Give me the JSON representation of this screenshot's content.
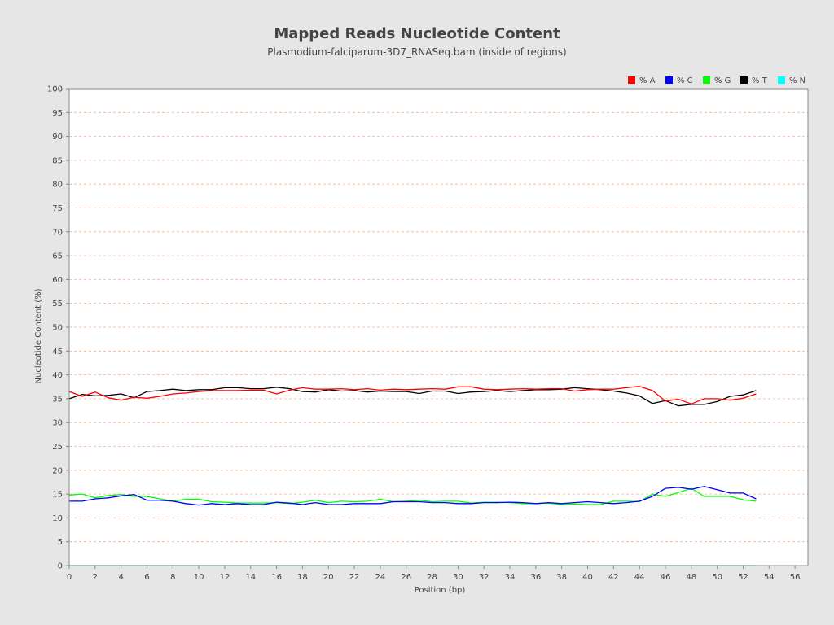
{
  "chart_data": {
    "type": "line",
    "title": "Mapped Reads Nucleotide Content",
    "subtitle": "Plasmodium-falciparum-3D7_RNASeq.bam (inside of regions)",
    "xlabel": "Position (bp)",
    "ylabel": "Nucleotide Content (%)",
    "xlim": [
      0,
      57
    ],
    "ylim": [
      0,
      100
    ],
    "xticks": [
      0,
      2,
      4,
      6,
      8,
      10,
      12,
      14,
      16,
      18,
      20,
      22,
      24,
      26,
      28,
      30,
      32,
      34,
      36,
      38,
      40,
      42,
      44,
      46,
      48,
      50,
      52,
      54,
      56
    ],
    "yticks": [
      0,
      5,
      10,
      15,
      20,
      25,
      30,
      35,
      40,
      45,
      50,
      55,
      60,
      65,
      70,
      75,
      80,
      85,
      90,
      95,
      100
    ],
    "grid": true,
    "legend_position": "top-right",
    "x": [
      0,
      1,
      2,
      3,
      4,
      5,
      6,
      7,
      8,
      9,
      10,
      11,
      12,
      13,
      14,
      15,
      16,
      17,
      18,
      19,
      20,
      21,
      22,
      23,
      24,
      25,
      26,
      27,
      28,
      29,
      30,
      31,
      32,
      33,
      34,
      35,
      36,
      37,
      38,
      39,
      40,
      41,
      42,
      43,
      44,
      45,
      46,
      47,
      48,
      49,
      50,
      51,
      52,
      53
    ],
    "series": [
      {
        "name": "% A",
        "color": "#ff0000",
        "values": [
          36.5,
          35.5,
          36.4,
          35.2,
          34.7,
          35.3,
          35.1,
          35.5,
          36.0,
          36.2,
          36.5,
          36.7,
          36.7,
          36.7,
          36.8,
          36.8,
          36.0,
          36.8,
          37.3,
          37.0,
          37.0,
          37.1,
          36.9,
          37.1,
          36.8,
          37.0,
          36.9,
          37.0,
          37.1,
          37.0,
          37.5,
          37.5,
          37.0,
          36.9,
          37.0,
          37.1,
          37.0,
          37.1,
          37.1,
          36.6,
          36.9,
          37.0,
          37.0,
          37.3,
          37.6,
          36.7,
          34.5,
          34.9,
          33.9,
          35.0,
          35.0,
          34.7,
          35.1,
          36.0
        ]
      },
      {
        "name": "% C",
        "color": "#0000ff",
        "values": [
          13.5,
          13.5,
          14.0,
          14.2,
          14.6,
          14.9,
          13.7,
          13.7,
          13.5,
          13.0,
          12.7,
          13.0,
          12.8,
          13.0,
          12.8,
          12.8,
          13.3,
          13.1,
          12.8,
          13.2,
          12.8,
          12.8,
          13.0,
          13.0,
          13.0,
          13.4,
          13.4,
          13.4,
          13.2,
          13.2,
          13.0,
          13.0,
          13.2,
          13.2,
          13.3,
          13.2,
          13.0,
          13.2,
          13.0,
          13.2,
          13.4,
          13.2,
          13.0,
          13.2,
          13.5,
          14.5,
          16.2,
          16.4,
          16.0,
          16.6,
          15.9,
          15.2,
          15.2,
          14.0
        ]
      },
      {
        "name": "% G",
        "color": "#00ff00",
        "values": [
          14.8,
          15.0,
          14.2,
          14.7,
          14.9,
          14.5,
          14.5,
          14.0,
          13.5,
          13.9,
          13.9,
          13.4,
          13.3,
          13.1,
          13.1,
          13.1,
          13.2,
          13.0,
          13.3,
          13.7,
          13.2,
          13.5,
          13.4,
          13.5,
          13.9,
          13.4,
          13.5,
          13.7,
          13.4,
          13.5,
          13.5,
          13.1,
          13.3,
          13.3,
          13.2,
          13.0,
          13.0,
          13.1,
          12.8,
          12.9,
          12.8,
          12.8,
          13.5,
          13.5,
          13.4,
          15.0,
          14.5,
          15.3,
          16.2,
          14.5,
          14.5,
          14.5,
          13.8,
          13.5
        ]
      },
      {
        "name": "% T",
        "color": "#000000",
        "values": [
          35.0,
          35.9,
          35.6,
          35.7,
          36.0,
          35.2,
          36.5,
          36.7,
          37.0,
          36.7,
          36.9,
          36.9,
          37.3,
          37.3,
          37.1,
          37.1,
          37.4,
          37.1,
          36.5,
          36.4,
          36.9,
          36.6,
          36.7,
          36.4,
          36.6,
          36.5,
          36.5,
          36.1,
          36.6,
          36.6,
          36.1,
          36.4,
          36.5,
          36.7,
          36.5,
          36.7,
          36.9,
          36.9,
          37.0,
          37.3,
          37.1,
          36.9,
          36.6,
          36.2,
          35.6,
          34.0,
          34.6,
          33.5,
          33.8,
          33.8,
          34.4,
          35.5,
          35.8,
          36.7
        ]
      },
      {
        "name": "% N",
        "color": "#00ffff",
        "values": [
          0,
          0,
          0,
          0,
          0,
          0,
          0,
          0,
          0,
          0,
          0,
          0,
          0,
          0,
          0,
          0,
          0,
          0,
          0,
          0,
          0,
          0,
          0,
          0,
          0,
          0,
          0,
          0,
          0,
          0,
          0,
          0,
          0,
          0,
          0,
          0,
          0,
          0,
          0,
          0,
          0,
          0,
          0,
          0,
          0,
          0,
          0,
          0,
          0,
          0,
          0,
          0,
          0,
          0
        ]
      }
    ]
  }
}
